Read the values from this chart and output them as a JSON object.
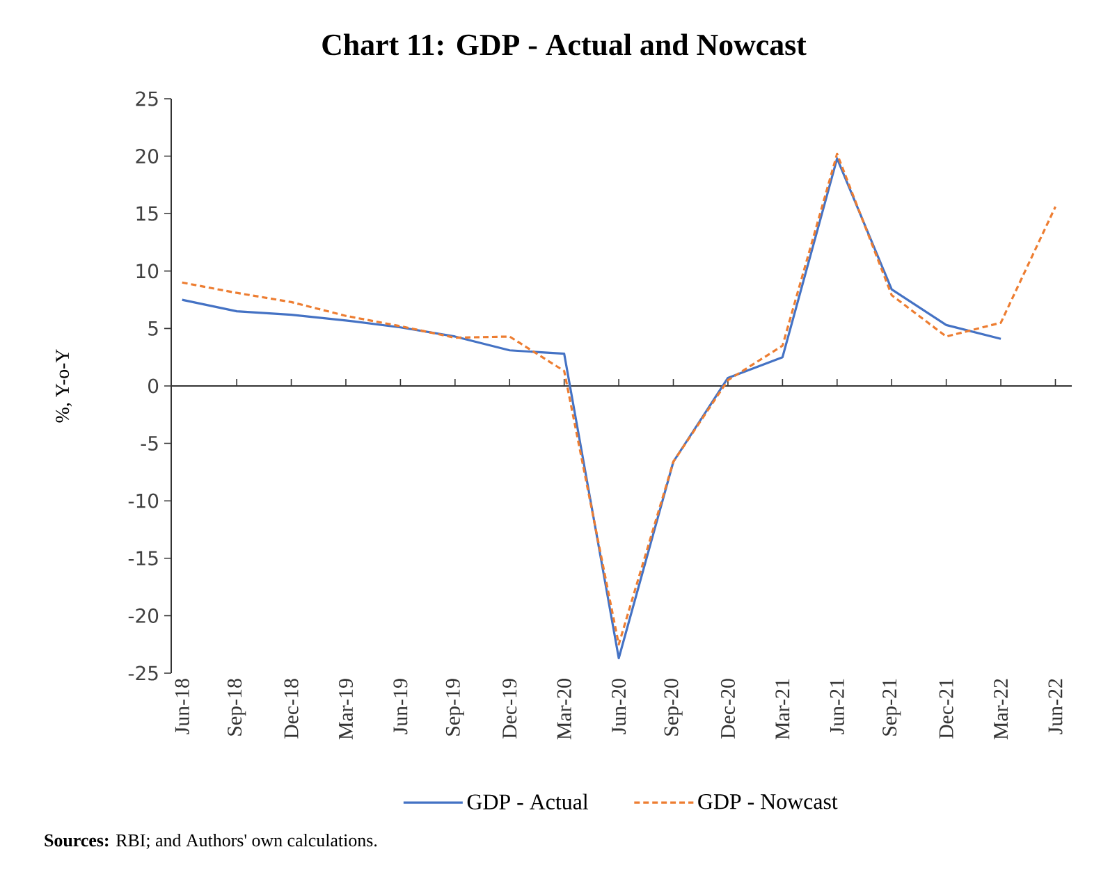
{
  "chart_data": {
    "type": "line",
    "title": "Chart 11: GDP - Actual and Nowcast",
    "ylabel": "%, Y-o-Y",
    "categories": [
      "Jun-18",
      "Sep-18",
      "Dec-18",
      "Mar-19",
      "Jun-19",
      "Sep-19",
      "Dec-19",
      "Mar-20",
      "Jun-20",
      "Sep-20",
      "Dec-20",
      "Mar-21",
      "Jun-21",
      "Sep-21",
      "Dec-21",
      "Mar-22",
      "Jun-22"
    ],
    "series": [
      {
        "name": "GDP - Actual",
        "color": "#4472c4",
        "line_style": "solid",
        "values": [
          7.5,
          6.5,
          6.2,
          5.7,
          5.1,
          4.3,
          3.1,
          2.8,
          -23.7,
          -6.6,
          0.7,
          2.5,
          19.8,
          8.4,
          5.3,
          4.1,
          null
        ]
      },
      {
        "name": "GDP - Nowcast",
        "color": "#ed7d31",
        "line_style": "dashed",
        "values": [
          9.0,
          8.1,
          7.3,
          6.1,
          5.2,
          4.2,
          4.3,
          1.3,
          -22.5,
          -6.6,
          0.5,
          3.5,
          20.2,
          7.9,
          4.3,
          5.5,
          15.6
        ]
      }
    ],
    "ylim": [
      -25,
      25
    ],
    "yticks": [
      -25,
      -20,
      -15,
      -10,
      -5,
      0,
      5,
      10,
      15,
      20,
      25
    ],
    "legend": "bottom",
    "annotations": [
      "**Sources:** RBI; and Authors' own calculations."
    ]
  }
}
